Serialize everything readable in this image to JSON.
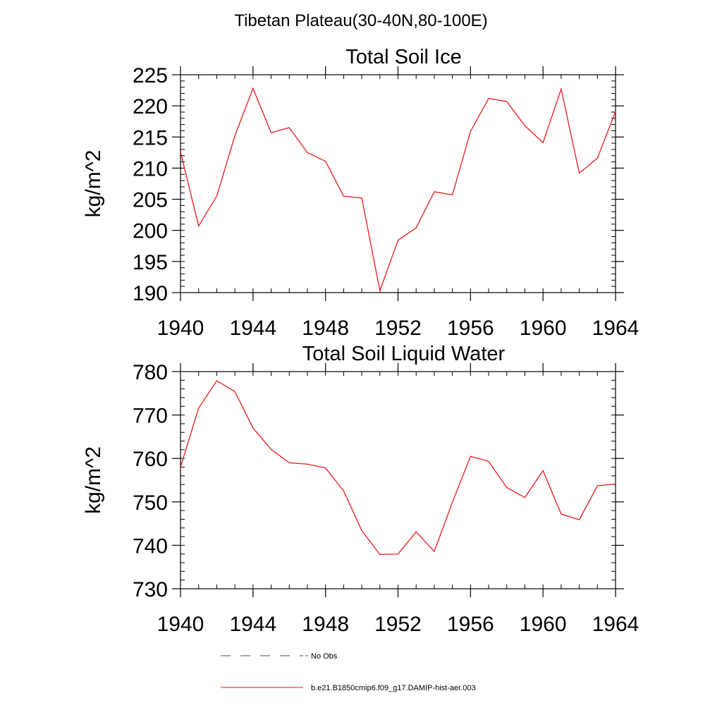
{
  "figure": {
    "suptitle": "Tibetan Plateau(30-40N,80-100E)"
  },
  "chart_data": [
    {
      "type": "line",
      "title": "Total Soil Ice",
      "xlabel": "",
      "ylabel": "kg/m^2",
      "xlim": [
        1940,
        1964
      ],
      "ylim": [
        190,
        225
      ],
      "xticks": [
        1940,
        1944,
        1948,
        1952,
        1956,
        1960,
        1964
      ],
      "yticks": [
        190,
        195,
        200,
        205,
        210,
        215,
        220,
        225
      ],
      "x": [
        1940,
        1941,
        1942,
        1943,
        1944,
        1945,
        1946,
        1947,
        1948,
        1949,
        1950,
        1951,
        1952,
        1953,
        1954,
        1955,
        1956,
        1957,
        1958,
        1959,
        1960,
        1961,
        1962,
        1963,
        1964
      ],
      "series": [
        {
          "name": "b.e21.B1850cmip6.f09_g17.DAMIP-hist-aer.003",
          "color": "#e8181e",
          "values": [
            212.6,
            200.7,
            205.5,
            215.2,
            222.8,
            215.7,
            216.5,
            212.5,
            211.1,
            205.5,
            205.2,
            190.3,
            198.4,
            200.4,
            206.2,
            205.7,
            215.9,
            221.2,
            220.7,
            216.8,
            214.1,
            222.7,
            209.2,
            211.6,
            219.1
          ]
        }
      ]
    },
    {
      "type": "line",
      "title": "Total Soil Liquid Water",
      "xlabel": "",
      "ylabel": "kg/m^2",
      "xlim": [
        1940,
        1964
      ],
      "ylim": [
        730,
        780
      ],
      "xticks": [
        1940,
        1944,
        1948,
        1952,
        1956,
        1960,
        1964
      ],
      "yticks": [
        730,
        740,
        750,
        760,
        770,
        780
      ],
      "x": [
        1940,
        1941,
        1942,
        1943,
        1944,
        1945,
        1946,
        1947,
        1948,
        1949,
        1950,
        1951,
        1952,
        1953,
        1954,
        1955,
        1956,
        1957,
        1958,
        1959,
        1960,
        1961,
        1962,
        1963,
        1964
      ],
      "series": [
        {
          "name": "b.e21.B1850cmip6.f09_g17.DAMIP-hist-aer.003",
          "color": "#e8181e",
          "values": [
            758.0,
            771.6,
            777.9,
            775.4,
            767.0,
            762.1,
            759.0,
            758.7,
            757.8,
            752.5,
            743.4,
            737.9,
            738.0,
            743.1,
            738.6,
            749.9,
            760.5,
            759.3,
            753.3,
            751.0,
            757.2,
            747.2,
            745.9,
            753.7,
            754.1
          ]
        }
      ]
    }
  ],
  "legend": {
    "placement": "bottom",
    "entries": [
      {
        "label": "No Obs",
        "style": "dashed",
        "color": "#4a4a7a"
      },
      {
        "label": "b.e21.B1850cmip6.f09_g17.DAMIP-hist-aer.003",
        "style": "solid",
        "color": "#e8181e"
      }
    ]
  }
}
